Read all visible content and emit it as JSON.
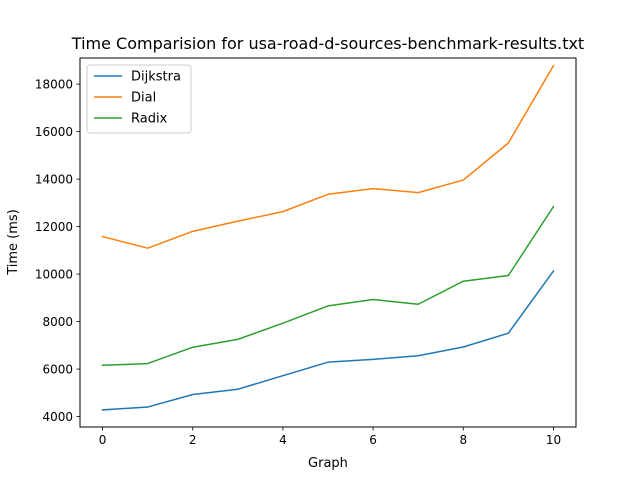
{
  "chart_data": {
    "type": "line",
    "title": "Time Comparision for usa-road-d-sources-benchmark-results.txt",
    "xlabel": "Graph",
    "ylabel": "Time (ms)",
    "x": [
      0,
      1,
      2,
      3,
      4,
      5,
      6,
      7,
      8,
      9,
      10
    ],
    "xlim": [
      -0.5,
      10.5
    ],
    "ylim": [
      3560,
      19100
    ],
    "xticks": [
      0,
      2,
      4,
      6,
      8,
      10
    ],
    "yticks": [
      4000,
      6000,
      8000,
      10000,
      12000,
      14000,
      16000,
      18000
    ],
    "grid": false,
    "legend_position": "top-left",
    "series": [
      {
        "name": "Dijkstra",
        "color": "#1f77b4",
        "values": [
          4280,
          4400,
          4930,
          5150,
          5720,
          6290,
          6410,
          6560,
          6930,
          7510,
          10130
        ]
      },
      {
        "name": "Dial",
        "color": "#ff7f0e",
        "values": [
          11580,
          11090,
          11800,
          12230,
          12630,
          13360,
          13600,
          13430,
          13960,
          15520,
          18780
        ]
      },
      {
        "name": "Radix",
        "color": "#2ca02c",
        "values": [
          6160,
          6230,
          6920,
          7250,
          7930,
          8660,
          8930,
          8730,
          9700,
          9940,
          12840
        ]
      }
    ]
  }
}
